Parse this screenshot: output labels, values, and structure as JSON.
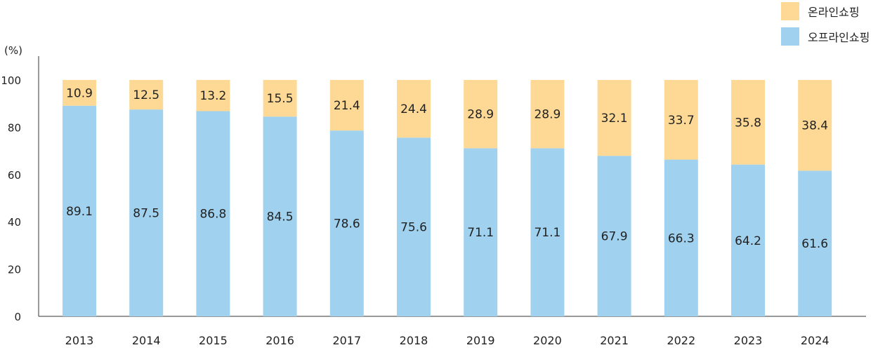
{
  "chart_data": {
    "type": "bar",
    "stacked": true,
    "unit_label": "(%)",
    "categories": [
      "2013",
      "2014",
      "2015",
      "2016",
      "2017",
      "2018",
      "2019",
      "2020",
      "2021",
      "2022",
      "2023",
      "2024"
    ],
    "series": [
      {
        "name": "오프라인쇼핑",
        "color": "#a0d2f0",
        "values": [
          89.1,
          87.5,
          86.8,
          84.5,
          78.6,
          75.6,
          71.1,
          71.1,
          67.9,
          66.3,
          64.2,
          61.6
        ]
      },
      {
        "name": "온라인쇼핑",
        "color": "#fdd995",
        "values": [
          10.9,
          12.5,
          13.2,
          15.5,
          21.4,
          24.4,
          28.9,
          28.9,
          32.1,
          33.7,
          35.8,
          38.4
        ]
      }
    ],
    "y_ticks": [
      0,
      20,
      40,
      60,
      80,
      100
    ],
    "ylim": [
      0,
      100
    ],
    "grid": false,
    "legend_position": "top-right"
  }
}
